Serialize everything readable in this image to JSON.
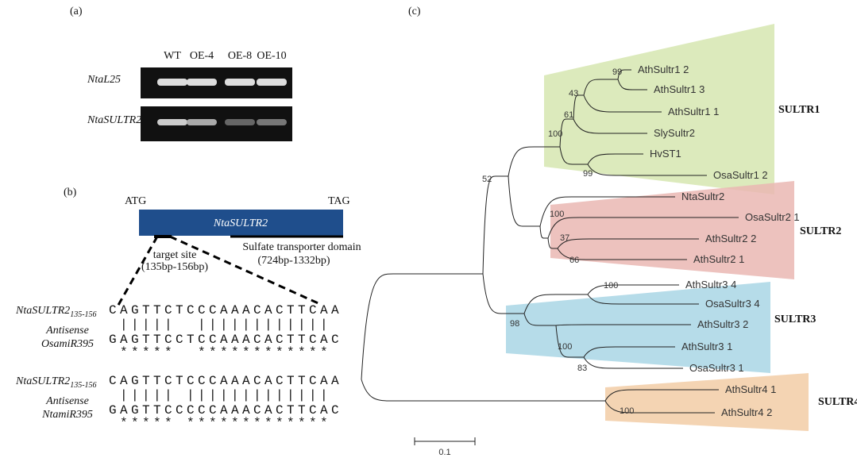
{
  "panel_a": {
    "label": "(a)",
    "lanes": [
      "WT",
      "OE-4",
      "OE-8",
      "OE-10"
    ],
    "rows": [
      "NtaL25",
      "NtaSULTR2"
    ]
  },
  "panel_b": {
    "label": "(b)",
    "start_codon": "ATG",
    "stop_codon": "TAG",
    "gene": "NtaSULTR2",
    "domain": "Sulfate transporter domain",
    "domain_range": "(724bp-1332bp)",
    "target": "target site",
    "target_range": "(135bp-156bp)",
    "alignments": [
      {
        "target_name": "NtaSULTR2",
        "target_sub": "135-156",
        "target_seq": "CAGTTCTCCCAAACACTTCAA",
        "match": " |||||  |||||||||||| ",
        "antisense": "Antisense",
        "mirna": "OsamiR395",
        "mirna_seq": "GAGTTCCTCCAAACACTTCAC",
        "stars": " *****  ************ "
      },
      {
        "target_name": "NtaSULTR2",
        "target_sub": "135-156",
        "target_seq": "CAGTTCTCCCAAACACTTCAA",
        "match": " ||||| ||||||||||||| ",
        "antisense": "Antisense",
        "mirna": "NtamiR395",
        "mirna_seq": "GAGTTCCCCCAAACACTTCAC",
        "stars": " ***** ************* "
      }
    ]
  },
  "panel_c": {
    "label": "(c)",
    "leaves": [
      "AthSultr1 2",
      "AthSultr1 3",
      "AthSultr1 1",
      "SlySultr2",
      "HvST1",
      "OsaSultr1 2",
      "NtaSultr2",
      "OsaSultr2 1",
      "AthSultr2 2",
      "AthSultr2 1",
      "AthSultr3 4",
      "OsaSultr3 4",
      "AthSultr3 2",
      "AthSultr3 1",
      "OsaSultr3 1",
      "AthSultr4 1",
      "AthSultr4 2"
    ],
    "bootstrap": [
      99,
      43,
      61,
      100,
      99,
      52,
      100,
      37,
      66,
      100,
      98,
      100,
      83,
      100
    ],
    "groups": [
      "SULTR1",
      "SULTR2",
      "SULTR3",
      "SULTR4"
    ],
    "scale": "0.1"
  }
}
